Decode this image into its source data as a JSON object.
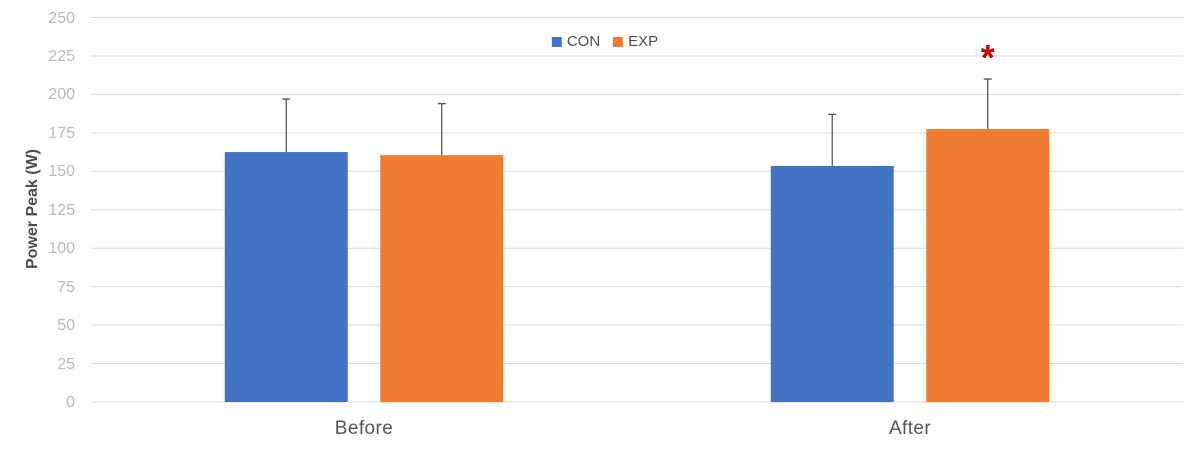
{
  "chart_data": {
    "type": "bar",
    "title": "",
    "ylabel": "Power Peak (W)",
    "xlabel": "",
    "categories": [
      "Before",
      "After"
    ],
    "series": [
      {
        "name": "CON",
        "color": "#4472C4",
        "values": [
          162.5,
          153.5
        ],
        "error_up": [
          34.5,
          33.5
        ]
      },
      {
        "name": "EXP",
        "color": "#ED7D31",
        "values": [
          160.5,
          177.5
        ],
        "error_up": [
          33.5,
          32.5
        ]
      }
    ],
    "ylim": [
      0,
      250
    ],
    "ytick_step": 25,
    "yticks": [
      0,
      25,
      50,
      75,
      100,
      125,
      150,
      175,
      200,
      225,
      250
    ],
    "grid": true,
    "legend_position": "top-center",
    "annotations": [
      {
        "text": "*",
        "category": "After",
        "series": "EXP",
        "color": "#C00000"
      }
    ]
  },
  "colors": {
    "background": "#FFFFFF",
    "gridline": "#DADADA",
    "tick_label": "#B9B9B9",
    "axis_title": "#4D4D4D",
    "category_label": "#555555",
    "legend_label": "#4D4D4D",
    "error_bar": "#595959"
  }
}
